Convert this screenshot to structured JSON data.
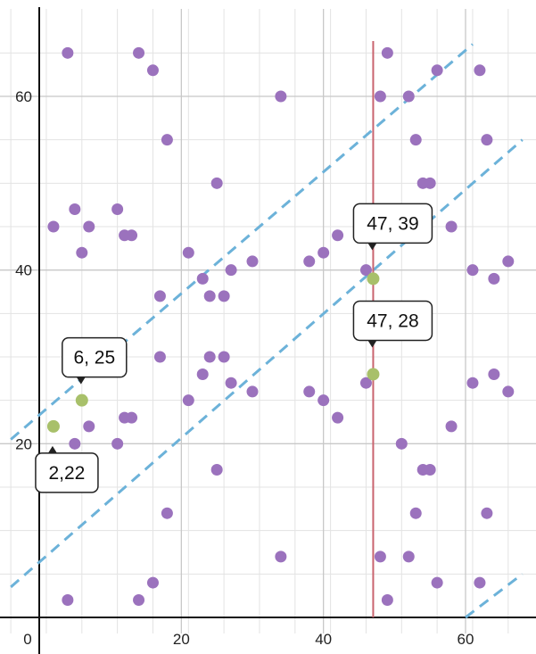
{
  "chart_data": {
    "type": "scatter",
    "xlim": [
      -4,
      69
    ],
    "ylim": [
      0,
      69
    ],
    "grid": true,
    "x_ticks": [
      0,
      20,
      40,
      60
    ],
    "y_ticks": [
      20,
      40,
      60
    ],
    "x_tick_labels": [
      "0",
      "20",
      "40",
      "60"
    ],
    "y_tick_labels": [
      "20",
      "40",
      "60"
    ],
    "points": [
      {
        "x": 4,
        "y": 65
      },
      {
        "x": 14,
        "y": 65
      },
      {
        "x": 16,
        "y": 63
      },
      {
        "x": 34,
        "y": 60
      },
      {
        "x": 49,
        "y": 65
      },
      {
        "x": 48,
        "y": 60
      },
      {
        "x": 52,
        "y": 60
      },
      {
        "x": 56,
        "y": 63
      },
      {
        "x": 62,
        "y": 63
      },
      {
        "x": 18,
        "y": 55
      },
      {
        "x": 53,
        "y": 55
      },
      {
        "x": 63,
        "y": 55
      },
      {
        "x": 25,
        "y": 50
      },
      {
        "x": 54,
        "y": 50
      },
      {
        "x": 55,
        "y": 50
      },
      {
        "x": 2,
        "y": 45
      },
      {
        "x": 5,
        "y": 47
      },
      {
        "x": 7,
        "y": 45
      },
      {
        "x": 11,
        "y": 47
      },
      {
        "x": 12,
        "y": 44
      },
      {
        "x": 13,
        "y": 44
      },
      {
        "x": 6,
        "y": 42
      },
      {
        "x": 58,
        "y": 45
      },
      {
        "x": 42,
        "y": 44
      },
      {
        "x": 21,
        "y": 42
      },
      {
        "x": 40,
        "y": 42
      },
      {
        "x": 38,
        "y": 41
      },
      {
        "x": 30,
        "y": 41
      },
      {
        "x": 27,
        "y": 40
      },
      {
        "x": 46,
        "y": 40
      },
      {
        "x": 61,
        "y": 40
      },
      {
        "x": 66,
        "y": 41
      },
      {
        "x": 64,
        "y": 39
      },
      {
        "x": 23,
        "y": 39
      },
      {
        "x": 17,
        "y": 37
      },
      {
        "x": 24,
        "y": 37
      },
      {
        "x": 26,
        "y": 37
      },
      {
        "x": 17,
        "y": 30
      },
      {
        "x": 24,
        "y": 30
      },
      {
        "x": 26,
        "y": 30
      },
      {
        "x": 23,
        "y": 28
      },
      {
        "x": 27,
        "y": 27
      },
      {
        "x": 46,
        "y": 27
      },
      {
        "x": 61,
        "y": 27
      },
      {
        "x": 64,
        "y": 28
      },
      {
        "x": 66,
        "y": 26
      },
      {
        "x": 30,
        "y": 26
      },
      {
        "x": 38,
        "y": 26
      },
      {
        "x": 40,
        "y": 25
      },
      {
        "x": 21,
        "y": 25
      },
      {
        "x": 12,
        "y": 23
      },
      {
        "x": 13,
        "y": 23
      },
      {
        "x": 42,
        "y": 23
      },
      {
        "x": 7,
        "y": 22
      },
      {
        "x": 58,
        "y": 22
      },
      {
        "x": 5,
        "y": 20
      },
      {
        "x": 11,
        "y": 20
      },
      {
        "x": 51,
        "y": 20
      },
      {
        "x": 25,
        "y": 17
      },
      {
        "x": 54,
        "y": 17
      },
      {
        "x": 55,
        "y": 17
      },
      {
        "x": 18,
        "y": 12
      },
      {
        "x": 53,
        "y": 12
      },
      {
        "x": 63,
        "y": 12
      },
      {
        "x": 34,
        "y": 7
      },
      {
        "x": 48,
        "y": 7
      },
      {
        "x": 52,
        "y": 7
      },
      {
        "x": 16,
        "y": 4
      },
      {
        "x": 56,
        "y": 4
      },
      {
        "x": 62,
        "y": 4
      },
      {
        "x": 4,
        "y": 2
      },
      {
        "x": 14,
        "y": 2
      },
      {
        "x": 49,
        "y": 2
      }
    ],
    "highlighted_points": [
      {
        "x": 2,
        "y": 22,
        "label": "2,22"
      },
      {
        "x": 6,
        "y": 25,
        "label": "6, 25"
      },
      {
        "x": 47,
        "y": 39,
        "label": "47, 39"
      },
      {
        "x": 47,
        "y": 28,
        "label": "47, 28"
      }
    ],
    "dashed_lines": [
      {
        "x1": -4,
        "y1": 20.5,
        "x2": 61,
        "y2": 66
      },
      {
        "x1": -4,
        "y1": 3.5,
        "x2": 68,
        "y2": 55
      },
      {
        "x1": 60,
        "y1": 0,
        "x2": 68,
        "y2": 5
      }
    ],
    "vertical_line": {
      "x": 47
    },
    "colors": {
      "point": "#9b72bd",
      "highlight": "#a8c06a",
      "dashed_line": "#6cb2d9",
      "vertical_line": "#c9646f",
      "grid": "#c8c8c8",
      "axis": "#111111"
    }
  }
}
